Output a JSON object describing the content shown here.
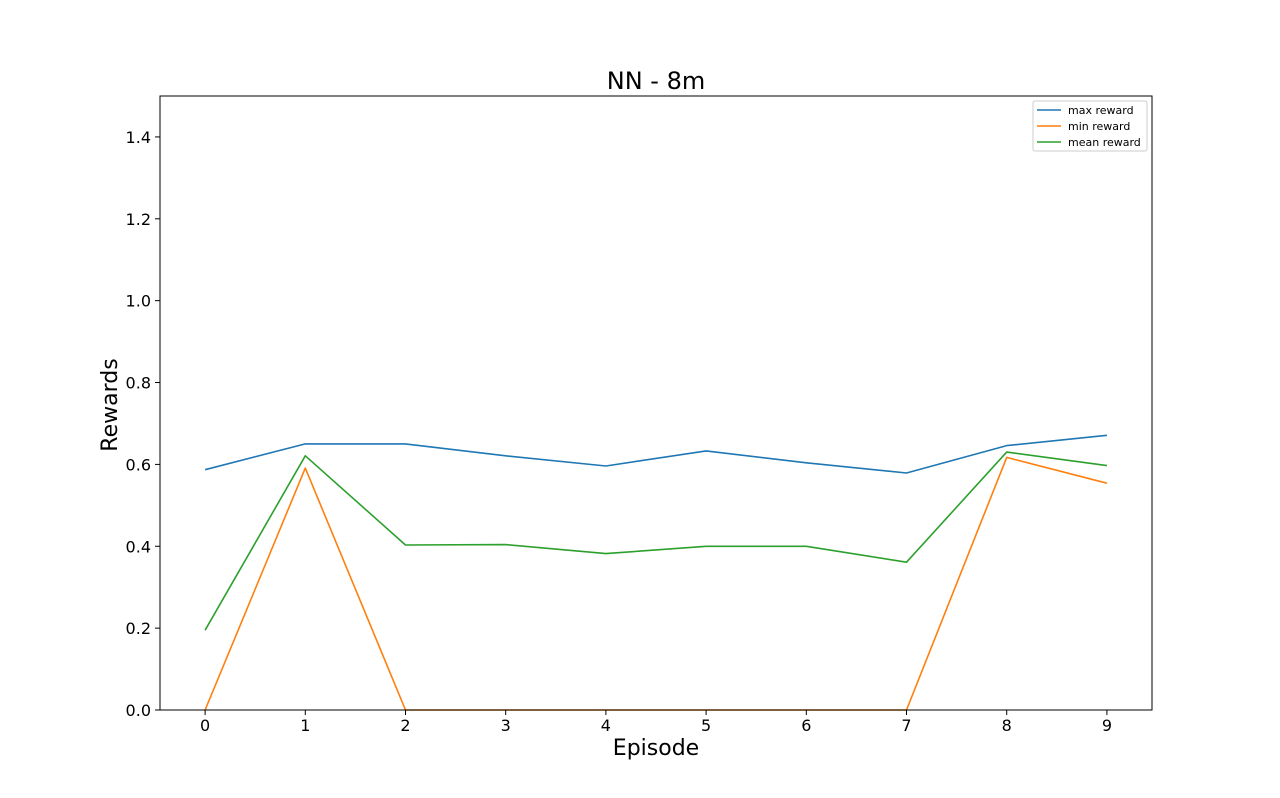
{
  "chart_data": {
    "type": "line",
    "title": "NN - 8m",
    "xlabel": "Episode",
    "ylabel": "Rewards",
    "x": [
      0,
      1,
      2,
      3,
      4,
      5,
      6,
      7,
      8,
      9
    ],
    "xticks": [
      "0",
      "1",
      "2",
      "3",
      "4",
      "5",
      "6",
      "7",
      "8",
      "9"
    ],
    "yticks": [
      "0.0",
      "0.2",
      "0.4",
      "0.6",
      "0.8",
      "1.0",
      "1.2",
      "1.4"
    ],
    "xlim": [
      -0.45,
      9.45
    ],
    "ylim": [
      0,
      1.5
    ],
    "grid": false,
    "legend_position": "top-right",
    "series": [
      {
        "name": "max reward",
        "color": "#1f77b4",
        "values": [
          0.587,
          0.65,
          0.65,
          0.621,
          0.596,
          0.633,
          0.604,
          0.579,
          0.646,
          0.671
        ]
      },
      {
        "name": "min reward",
        "color": "#ff7f0e",
        "values": [
          0.0,
          0.591,
          0.0,
          0.0,
          0.0,
          0.0,
          0.0,
          0.0,
          0.617,
          0.554
        ]
      },
      {
        "name": "mean reward",
        "color": "#2ca02c",
        "values": [
          0.195,
          0.621,
          0.403,
          0.404,
          0.382,
          0.4,
          0.4,
          0.361,
          0.63,
          0.597
        ]
      }
    ]
  }
}
